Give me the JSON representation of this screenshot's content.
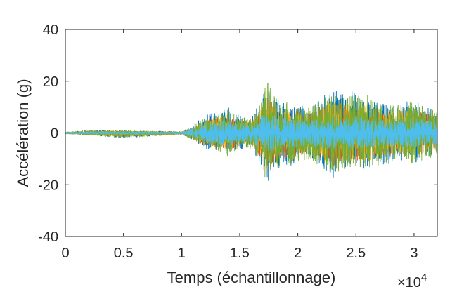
{
  "chart_data": {
    "type": "line",
    "title": "",
    "xlabel": "Temps (échantillonnage)",
    "ylabel": "Accélération (g)",
    "x_exponent_label": "×10",
    "x_exponent_power": "4",
    "x_scale": 10000,
    "xlim": [
      0,
      32000
    ],
    "ylim": [
      -40,
      40
    ],
    "x_ticks": [
      0,
      5000,
      10000,
      15000,
      20000,
      25000,
      30000
    ],
    "x_tick_labels": [
      "0",
      "0.5",
      "1",
      "1.5",
      "2",
      "2.5",
      "3"
    ],
    "y_ticks": [
      -40,
      -20,
      0,
      20,
      40
    ],
    "y_tick_labels": [
      "-40",
      "-20",
      "0",
      "20",
      "40"
    ],
    "grid": false,
    "legend": "none",
    "series": [
      {
        "color": "#0072BD",
        "envelope_x": [
          0,
          2000,
          5000,
          10000,
          11000,
          12000,
          13000,
          14000,
          15000,
          16000,
          17000,
          17300,
          18000,
          19000,
          20000,
          21000,
          22000,
          23000,
          24000,
          25000,
          26000,
          27000,
          28000,
          29000,
          30000,
          31000,
          32000
        ],
        "envelope_upper": [
          0.3,
          1.2,
          1.0,
          0.6,
          3,
          7,
          8,
          10,
          7,
          6,
          14,
          21,
          14,
          12,
          11,
          10,
          14,
          18,
          15,
          17,
          14,
          12,
          11,
          12,
          13,
          10,
          9
        ],
        "envelope_lower": [
          -0.3,
          -1.0,
          -2.0,
          -0.6,
          -3,
          -6,
          -7,
          -9,
          -7,
          -6,
          -14,
          -20,
          -14,
          -13,
          -12,
          -11,
          -13,
          -18,
          -15,
          -14,
          -14,
          -13,
          -12,
          -11,
          -12,
          -10,
          -9
        ]
      },
      {
        "color": "#D95319",
        "envelope_x": [
          0,
          2000,
          5000,
          10000,
          11000,
          12000,
          13000,
          14000,
          15000,
          16000,
          17000,
          17300,
          18000,
          19000,
          20000,
          21000,
          22000,
          23000,
          24000,
          25000,
          26000,
          27000,
          28000,
          29000,
          30000,
          31000,
          32000
        ],
        "envelope_upper": [
          0.3,
          0.8,
          0.8,
          0.5,
          2.5,
          5,
          6,
          7,
          5,
          5,
          11,
          16,
          11,
          9,
          9,
          8,
          10,
          13,
          11,
          12,
          11,
          9,
          8,
          9,
          9,
          8,
          7
        ],
        "envelope_lower": [
          -0.3,
          -0.8,
          -1.5,
          -0.5,
          -2.5,
          -5,
          -6,
          -7,
          -5,
          -5,
          -11,
          -15,
          -11,
          -10,
          -9,
          -9,
          -10,
          -13,
          -11,
          -11,
          -11,
          -10,
          -9,
          -8,
          -9,
          -8,
          -7
        ]
      },
      {
        "color": "#EDB120",
        "envelope_x": [
          0,
          2000,
          5000,
          10000,
          11000,
          12000,
          13000,
          14000,
          15000,
          16000,
          17000,
          17300,
          18000,
          19000,
          20000,
          21000,
          22000,
          23000,
          24000,
          25000,
          26000,
          27000,
          28000,
          29000,
          30000,
          31000,
          32000
        ],
        "envelope_upper": [
          0.3,
          0.8,
          0.8,
          0.5,
          2.5,
          5,
          6,
          7,
          5,
          5,
          11,
          16,
          11,
          9,
          9,
          8,
          10,
          13,
          11,
          12,
          11,
          9,
          8,
          9,
          9,
          8,
          7
        ],
        "envelope_lower": [
          -0.3,
          -0.8,
          -1.5,
          -0.5,
          -2.5,
          -5,
          -6,
          -7,
          -5,
          -5,
          -11,
          -15,
          -11,
          -10,
          -9,
          -9,
          -10,
          -13,
          -11,
          -11,
          -11,
          -10,
          -9,
          -8,
          -9,
          -8,
          -7
        ]
      },
      {
        "color": "#77AC30",
        "envelope_x": [
          0,
          2000,
          5000,
          10000,
          11000,
          12000,
          13000,
          14000,
          15000,
          16000,
          17000,
          17300,
          18000,
          19000,
          20000,
          21000,
          22000,
          23000,
          24000,
          25000,
          26000,
          27000,
          28000,
          29000,
          30000,
          31000,
          32000
        ],
        "envelope_upper": [
          0.4,
          1.0,
          1.0,
          0.6,
          3,
          6,
          7,
          9,
          6,
          6,
          13,
          22,
          14,
          12,
          10,
          10,
          13,
          16,
          14,
          15,
          15,
          12,
          11,
          12,
          12,
          10,
          9
        ],
        "envelope_lower": [
          -0.4,
          -1.0,
          -2.0,
          -0.6,
          -3,
          -6,
          -7,
          -9,
          -6,
          -6,
          -13,
          -21,
          -14,
          -12,
          -12,
          -11,
          -13,
          -16,
          -14,
          -13,
          -14,
          -13,
          -11,
          -11,
          -12,
          -10,
          -9
        ]
      },
      {
        "color": "#4DBEEE",
        "envelope_x": [
          0,
          2000,
          5000,
          10000,
          11000,
          12000,
          13000,
          14000,
          15000,
          16000,
          17000,
          17300,
          18000,
          19000,
          20000,
          21000,
          22000,
          23000,
          24000,
          25000,
          26000,
          27000,
          28000,
          29000,
          30000,
          31000,
          32000
        ],
        "envelope_upper": [
          0.2,
          0.5,
          0.5,
          0.4,
          2,
          4,
          4.5,
          5,
          4,
          4,
          7,
          8,
          6.5,
          6,
          6,
          5.5,
          6,
          7,
          6,
          6.5,
          6,
          5.5,
          5,
          5.5,
          6,
          5,
          5
        ],
        "envelope_lower": [
          -0.2,
          -0.5,
          -0.6,
          -0.4,
          -2,
          -4,
          -4.5,
          -5,
          -4,
          -4,
          -7,
          -8,
          -6.5,
          -6,
          -6,
          -5.5,
          -6,
          -7,
          -6,
          -6.5,
          -6,
          -5.5,
          -5,
          -5.5,
          -6,
          -5,
          -5
        ]
      }
    ]
  }
}
